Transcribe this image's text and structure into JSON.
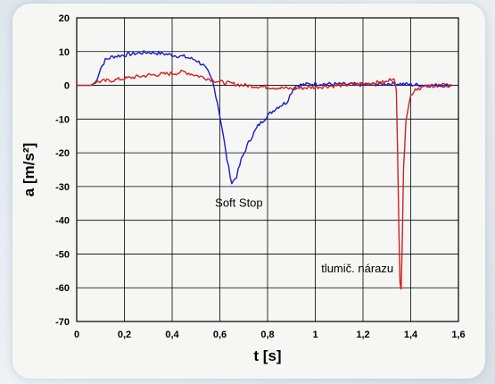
{
  "chart_data": {
    "type": "line",
    "title": "",
    "xlabel": "t [s]",
    "ylabel": "a [m/s²]",
    "xlim": [
      0,
      1.6
    ],
    "ylim": [
      -70,
      20
    ],
    "x_ticks": [
      "0",
      "0,2",
      "0,4",
      "0,6",
      "0,8",
      "1",
      "1,2",
      "1,4",
      "1,6"
    ],
    "y_ticks": [
      "20",
      "10",
      "0",
      "-10",
      "-20",
      "-30",
      "-40",
      "-50",
      "-60",
      "-70"
    ],
    "grid": true,
    "series": [
      {
        "name": "Soft Stop",
        "color": "#1a1acc",
        "points": [
          [
            0,
            0
          ],
          [
            0.06,
            0
          ],
          [
            0.08,
            1
          ],
          [
            0.1,
            5
          ],
          [
            0.12,
            7.5
          ],
          [
            0.15,
            8.5
          ],
          [
            0.2,
            9
          ],
          [
            0.25,
            9.5
          ],
          [
            0.3,
            9.8
          ],
          [
            0.35,
            9.5
          ],
          [
            0.4,
            9
          ],
          [
            0.45,
            8.5
          ],
          [
            0.5,
            7.5
          ],
          [
            0.53,
            6
          ],
          [
            0.55,
            4
          ],
          [
            0.57,
            1
          ],
          [
            0.59,
            -5
          ],
          [
            0.61,
            -13
          ],
          [
            0.63,
            -22
          ],
          [
            0.65,
            -29
          ],
          [
            0.67,
            -27
          ],
          [
            0.69,
            -22
          ],
          [
            0.72,
            -17
          ],
          [
            0.76,
            -12
          ],
          [
            0.8,
            -9
          ],
          [
            0.84,
            -6.5
          ],
          [
            0.88,
            -5
          ],
          [
            0.9,
            -2
          ],
          [
            0.92,
            0
          ],
          [
            1.0,
            0.5
          ],
          [
            1.1,
            0.3
          ],
          [
            1.2,
            0.2
          ],
          [
            1.3,
            0.5
          ],
          [
            1.35,
            0.5
          ],
          [
            1.4,
            0.2
          ],
          [
            1.5,
            0
          ],
          [
            1.57,
            0
          ]
        ]
      },
      {
        "name": "tlumič. nárazu",
        "color": "#d42020",
        "points": [
          [
            0,
            0
          ],
          [
            0.06,
            0
          ],
          [
            0.08,
            1
          ],
          [
            0.15,
            1.5
          ],
          [
            0.2,
            2
          ],
          [
            0.3,
            3
          ],
          [
            0.4,
            3.5
          ],
          [
            0.45,
            4
          ],
          [
            0.5,
            3
          ],
          [
            0.55,
            2
          ],
          [
            0.6,
            1
          ],
          [
            0.7,
            0
          ],
          [
            0.8,
            -0.5
          ],
          [
            0.9,
            -1
          ],
          [
            1.0,
            -0.5
          ],
          [
            1.1,
            0
          ],
          [
            1.2,
            0.5
          ],
          [
            1.3,
            1
          ],
          [
            1.33,
            2.5
          ],
          [
            1.34,
            -2
          ],
          [
            1.345,
            -20
          ],
          [
            1.35,
            -40
          ],
          [
            1.355,
            -58
          ],
          [
            1.36,
            -60
          ],
          [
            1.365,
            -45
          ],
          [
            1.37,
            -25
          ],
          [
            1.38,
            -10
          ],
          [
            1.4,
            -3
          ],
          [
            1.42,
            -1
          ],
          [
            1.5,
            0
          ],
          [
            1.57,
            0
          ]
        ]
      }
    ],
    "annotations": [
      "Soft Stop",
      "tlumič. nárazu"
    ]
  }
}
